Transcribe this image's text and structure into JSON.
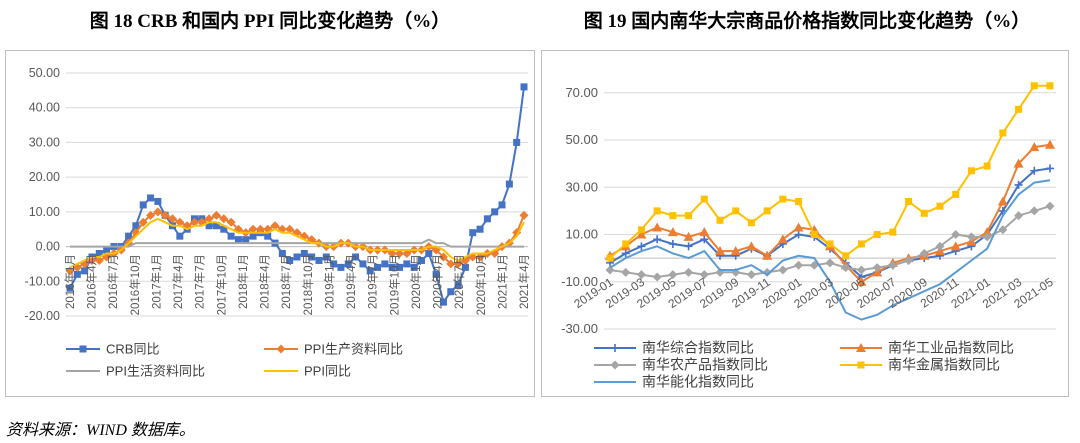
{
  "figures": {
    "left_title": "图 18 CRB 和国内 PPI 同比变化趋势（%）",
    "right_title": "图 19  国内南华大宗商品价格指数同比变化趋势（%）"
  },
  "source": "资料来源：WIND 数据库。",
  "chart_data": [
    {
      "type": "line",
      "title": "图 18 CRB 和国内 PPI 同比变化趋势（%）",
      "ylim": [
        -20,
        50
      ],
      "yticks": [
        "50.00",
        "40.00",
        "30.00",
        "20.00",
        "10.00",
        "0.00",
        "-10.00",
        "-20.00"
      ],
      "xtick_labels": [
        "2016年1月",
        "2016年4月",
        "2016年7月",
        "2016年10月",
        "2017年1月",
        "2017年4月",
        "2017年7月",
        "2017年10月",
        "2018年1月",
        "2018年4月",
        "2018年7月",
        "2018年10月",
        "2019年1月",
        "2019年4月",
        "2019年7月",
        "2019年10月",
        "2020年1月",
        "2020年4月",
        "2020年7月",
        "2020年10月",
        "2021年1月",
        "2021年4月"
      ],
      "grid": true,
      "legend_position": "bottom",
      "series": [
        {
          "name": "CRB同比",
          "color": "#4472c4",
          "marker": "square",
          "values": [
            -12,
            -8,
            -7,
            -3,
            -2,
            -1,
            0,
            0,
            3,
            6,
            12,
            14,
            13,
            9,
            6,
            3,
            5,
            8,
            8,
            6,
            6,
            5,
            3,
            2,
            2,
            3,
            4,
            3,
            1,
            -2,
            -4,
            -3,
            -2,
            -3,
            -4,
            -3,
            -5,
            -6,
            -5,
            -3,
            -5,
            -7,
            -6,
            -5,
            -6,
            -6,
            -5,
            -6,
            -4,
            -2,
            -8,
            -16,
            -13,
            -11,
            -6,
            4,
            5,
            8,
            10,
            12,
            18,
            30,
            46
          ]
        },
        {
          "name": "PPI生产资料同比",
          "color": "#ed7d31",
          "marker": "diamond",
          "values": [
            -7,
            -6,
            -5,
            -4,
            -4,
            -3,
            -2,
            -1,
            1,
            4,
            7,
            9,
            10,
            9,
            8,
            7,
            6,
            7,
            7,
            8,
            9,
            8,
            7,
            5,
            4,
            5,
            5,
            5,
            6,
            5,
            5,
            4,
            3,
            2,
            1,
            0,
            0,
            1,
            1,
            0,
            0,
            -1,
            -1,
            -1,
            -2,
            -2,
            -2,
            -1,
            -1,
            0,
            -1,
            -3,
            -5,
            -5,
            -4,
            -3,
            -3,
            -2,
            -2,
            0,
            1,
            4,
            9
          ]
        },
        {
          "name": "PPI生活资料同比",
          "color": "#a5a5a5",
          "marker": "none",
          "values": [
            0,
            0,
            0,
            0,
            0,
            0,
            0,
            0,
            0,
            1,
            1,
            1,
            1,
            1,
            1,
            1,
            1,
            1,
            1,
            1,
            1,
            1,
            1,
            1,
            1,
            1,
            1,
            1,
            1,
            1,
            1,
            1,
            1,
            1,
            1,
            1,
            1,
            1,
            1,
            1,
            1,
            1,
            1,
            1,
            1,
            1,
            1,
            1,
            1,
            2,
            1,
            1,
            0,
            0,
            0,
            0,
            0,
            0,
            0,
            0,
            0,
            0,
            0
          ]
        },
        {
          "name": "PPI同比",
          "color": "#ffc000",
          "marker": "none",
          "values": [
            -6,
            -5,
            -4,
            -3,
            -3,
            -2,
            -2,
            -1,
            1,
            3,
            5,
            7,
            8,
            7,
            6,
            6,
            5,
            6,
            6,
            7,
            7,
            6,
            5,
            4,
            4,
            4,
            4,
            4,
            5,
            4,
            4,
            3,
            2,
            1,
            1,
            0,
            0,
            1,
            1,
            0,
            0,
            -1,
            -1,
            -1,
            -1,
            -1,
            -1,
            -1,
            -1,
            0,
            0,
            -1,
            -3,
            -4,
            -3,
            -2,
            -2,
            -2,
            -1,
            0,
            1,
            3,
            7
          ]
        }
      ]
    },
    {
      "type": "line",
      "title": "图 19  国内南华大宗商品价格指数同比变化趋势（%）",
      "ylim": [
        -30,
        75
      ],
      "yticks": [
        "70.00",
        "50.00",
        "30.00",
        "10.00",
        "-10.00",
        "-30.00"
      ],
      "xtick_labels": [
        "2019-01",
        "2019-03",
        "2019-05",
        "2019-07",
        "2019-09",
        "2019-11",
        "2020-01",
        "2020-03",
        "2020-05",
        "2020-07",
        "2020-09",
        "2020-11",
        "2021-01",
        "2021-03",
        "2021-05"
      ],
      "grid": true,
      "legend_position": "bottom",
      "series": [
        {
          "name": "南华综合指数同比",
          "color": "#4472c4",
          "marker": "plus",
          "values": [
            -2,
            2,
            5,
            8,
            6,
            5,
            8,
            1,
            1,
            4,
            1,
            6,
            10,
            9,
            4,
            -2,
            -8,
            -6,
            -3,
            -1,
            0,
            1,
            3,
            5,
            10,
            20,
            31,
            37,
            38
          ]
        },
        {
          "name": "南华工业品指数同比",
          "color": "#ed7d31",
          "marker": "triangle",
          "values": [
            1,
            5,
            10,
            13,
            11,
            9,
            11,
            3,
            3,
            5,
            1,
            8,
            13,
            12,
            5,
            -3,
            -10,
            -6,
            -2,
            0,
            1,
            3,
            5,
            7,
            11,
            24,
            40,
            47,
            48
          ]
        },
        {
          "name": "南华农产品指数同比",
          "color": "#a5a5a5",
          "marker": "diamond",
          "values": [
            -5,
            -6,
            -7,
            -8,
            -7,
            -6,
            -7,
            -6,
            -6,
            -7,
            -6,
            -5,
            -3,
            -3,
            -2,
            -4,
            -5,
            -4,
            -3,
            -1,
            2,
            5,
            10,
            9,
            9,
            12,
            18,
            20,
            22
          ]
        },
        {
          "name": "南华金属指数同比",
          "color": "#ffc000",
          "marker": "square",
          "values": [
            0,
            6,
            12,
            20,
            18,
            18,
            25,
            16,
            20,
            15,
            20,
            25,
            24,
            10,
            6,
            1,
            6,
            10,
            11,
            24,
            19,
            22,
            27,
            37,
            39,
            53,
            63,
            73,
            73
          ]
        },
        {
          "name": "南华能化指数同比",
          "color": "#5b9bd5",
          "marker": "none",
          "values": [
            -4,
            0,
            3,
            5,
            2,
            0,
            3,
            -5,
            -5,
            -3,
            -7,
            -1,
            1,
            0,
            -10,
            -23,
            -26,
            -24,
            -20,
            -17,
            -14,
            -11,
            -6,
            -1,
            4,
            18,
            27,
            32,
            33
          ]
        }
      ]
    }
  ]
}
